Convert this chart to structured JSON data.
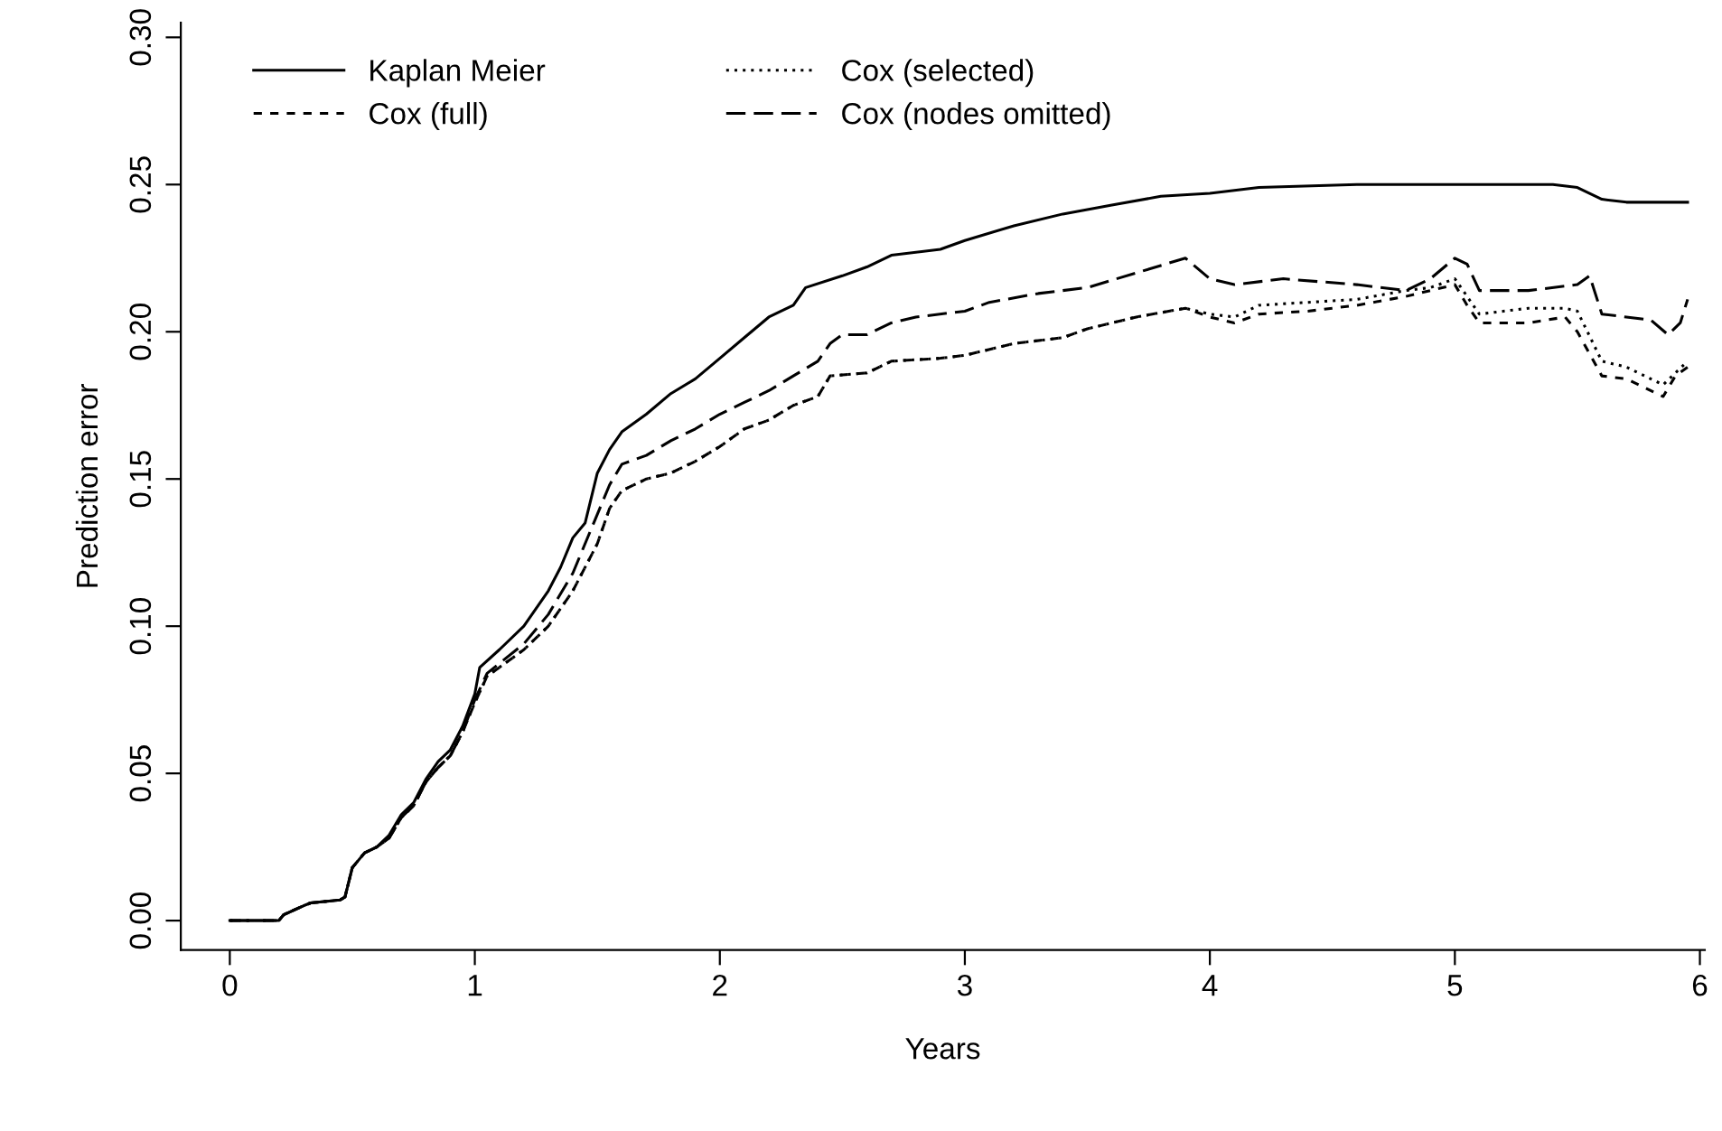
{
  "chart_data": {
    "type": "line",
    "xlabel": "Years",
    "ylabel": "Prediction error",
    "xlim": [
      -0.2,
      6.02
    ],
    "ylim": [
      -0.01,
      0.305
    ],
    "xticks": [
      0,
      1,
      2,
      3,
      4,
      5,
      6
    ],
    "yticks": [
      {
        "value": 0,
        "label": "0.00"
      },
      {
        "value": 0.05,
        "label": "0.05"
      },
      {
        "value": 0.1,
        "label": "0.10"
      },
      {
        "value": 0.15,
        "label": "0.15"
      },
      {
        "value": 0.2,
        "label": "0.20"
      },
      {
        "value": 0.25,
        "label": "0.25"
      },
      {
        "value": 0.3,
        "label": "0.30"
      }
    ],
    "grid": false,
    "legend": "top left",
    "marker": "none",
    "series": [
      {
        "name": "Kaplan Meier",
        "color": "#000000",
        "line_style": "solid",
        "x": [
          0,
          0.2,
          0.22,
          0.3,
          0.33,
          0.45,
          0.47,
          0.5,
          0.55,
          0.6,
          0.65,
          0.7,
          0.75,
          0.8,
          0.85,
          0.9,
          0.95,
          1.0,
          1.02,
          1.1,
          1.2,
          1.3,
          1.35,
          1.4,
          1.45,
          1.5,
          1.55,
          1.6,
          1.7,
          1.8,
          1.9,
          2.0,
          2.1,
          2.2,
          2.3,
          2.35,
          2.5,
          2.6,
          2.7,
          2.9,
          3.0,
          3.2,
          3.4,
          3.6,
          3.8,
          4.0,
          4.2,
          4.6,
          5.0,
          5.4,
          5.5,
          5.6,
          5.7,
          5.95
        ],
        "values": [
          0,
          0,
          0.002,
          0.005,
          0.006,
          0.007,
          0.008,
          0.018,
          0.023,
          0.025,
          0.029,
          0.036,
          0.04,
          0.048,
          0.054,
          0.058,
          0.066,
          0.077,
          0.086,
          0.092,
          0.1,
          0.112,
          0.12,
          0.13,
          0.135,
          0.152,
          0.16,
          0.166,
          0.172,
          0.179,
          0.184,
          0.191,
          0.198,
          0.205,
          0.209,
          0.215,
          0.219,
          0.222,
          0.226,
          0.228,
          0.231,
          0.236,
          0.24,
          0.243,
          0.246,
          0.247,
          0.249,
          0.25,
          0.25,
          0.25,
          0.249,
          0.245,
          0.244,
          0.244
        ]
      },
      {
        "name": "Cox (full)",
        "color": "#000000",
        "line_style": "dashed",
        "x": [
          0,
          0.2,
          0.22,
          0.3,
          0.33,
          0.45,
          0.47,
          0.5,
          0.55,
          0.6,
          0.65,
          0.7,
          0.75,
          0.8,
          0.85,
          0.9,
          0.95,
          1.0,
          1.05,
          1.2,
          1.3,
          1.4,
          1.5,
          1.55,
          1.6,
          1.7,
          1.8,
          1.9,
          2.0,
          2.1,
          2.2,
          2.3,
          2.4,
          2.45,
          2.6,
          2.7,
          2.9,
          3.0,
          3.2,
          3.4,
          3.5,
          3.7,
          3.9,
          4.0,
          4.1,
          4.2,
          4.4,
          4.6,
          4.8,
          4.9,
          5.0,
          5.05,
          5.1,
          5.3,
          5.45,
          5.5,
          5.6,
          5.7,
          5.85,
          5.9,
          5.95
        ],
        "values": [
          0,
          0,
          0.002,
          0.005,
          0.006,
          0.007,
          0.008,
          0.018,
          0.023,
          0.025,
          0.028,
          0.035,
          0.039,
          0.047,
          0.052,
          0.056,
          0.064,
          0.074,
          0.083,
          0.092,
          0.1,
          0.112,
          0.128,
          0.14,
          0.146,
          0.15,
          0.152,
          0.156,
          0.161,
          0.167,
          0.17,
          0.175,
          0.178,
          0.185,
          0.186,
          0.19,
          0.191,
          0.192,
          0.196,
          0.198,
          0.201,
          0.205,
          0.208,
          0.205,
          0.203,
          0.206,
          0.207,
          0.209,
          0.212,
          0.214,
          0.216,
          0.209,
          0.203,
          0.203,
          0.205,
          0.2,
          0.185,
          0.184,
          0.178,
          0.185,
          0.188
        ]
      },
      {
        "name": "Cox (selected)",
        "color": "#000000",
        "line_style": "dotted",
        "x": [
          0,
          0.2,
          0.22,
          0.3,
          0.33,
          0.45,
          0.47,
          0.5,
          0.55,
          0.6,
          0.65,
          0.7,
          0.75,
          0.8,
          0.85,
          0.9,
          0.95,
          1.0,
          1.05,
          1.2,
          1.3,
          1.4,
          1.5,
          1.55,
          1.6,
          1.7,
          1.8,
          1.9,
          2.0,
          2.1,
          2.2,
          2.3,
          2.4,
          2.45,
          2.6,
          2.7,
          2.9,
          3.0,
          3.2,
          3.4,
          3.5,
          3.7,
          3.9,
          4.0,
          4.1,
          4.2,
          4.4,
          4.6,
          4.8,
          4.9,
          5.0,
          5.05,
          5.1,
          5.3,
          5.45,
          5.5,
          5.6,
          5.7,
          5.85,
          5.9,
          5.95
        ],
        "values": [
          0,
          0,
          0.002,
          0.005,
          0.006,
          0.007,
          0.008,
          0.018,
          0.023,
          0.025,
          0.028,
          0.035,
          0.039,
          0.047,
          0.052,
          0.056,
          0.064,
          0.074,
          0.083,
          0.092,
          0.1,
          0.112,
          0.128,
          0.14,
          0.146,
          0.15,
          0.152,
          0.156,
          0.161,
          0.167,
          0.17,
          0.175,
          0.178,
          0.185,
          0.186,
          0.19,
          0.191,
          0.192,
          0.196,
          0.198,
          0.201,
          0.205,
          0.208,
          0.206,
          0.205,
          0.209,
          0.21,
          0.211,
          0.214,
          0.215,
          0.218,
          0.212,
          0.206,
          0.208,
          0.208,
          0.207,
          0.19,
          0.188,
          0.182,
          0.186,
          0.19
        ]
      },
      {
        "name": "Cox (nodes omitted)",
        "color": "#000000",
        "line_style": "longdash",
        "x": [
          0,
          0.2,
          0.22,
          0.3,
          0.33,
          0.45,
          0.47,
          0.5,
          0.55,
          0.6,
          0.65,
          0.7,
          0.75,
          0.8,
          0.85,
          0.9,
          0.95,
          1.0,
          1.05,
          1.2,
          1.3,
          1.4,
          1.5,
          1.55,
          1.6,
          1.7,
          1.8,
          1.9,
          2.0,
          2.1,
          2.2,
          2.3,
          2.4,
          2.45,
          2.5,
          2.6,
          2.7,
          2.8,
          3.0,
          3.1,
          3.3,
          3.5,
          3.7,
          3.9,
          4.0,
          4.1,
          4.3,
          4.6,
          4.8,
          4.9,
          5.0,
          5.05,
          5.1,
          5.3,
          5.5,
          5.55,
          5.6,
          5.7,
          5.8,
          5.87,
          5.92,
          5.95
        ],
        "values": [
          0,
          0,
          0.002,
          0.005,
          0.006,
          0.007,
          0.008,
          0.018,
          0.023,
          0.025,
          0.028,
          0.035,
          0.039,
          0.047,
          0.052,
          0.056,
          0.064,
          0.075,
          0.084,
          0.094,
          0.104,
          0.118,
          0.138,
          0.148,
          0.155,
          0.158,
          0.163,
          0.167,
          0.172,
          0.176,
          0.18,
          0.185,
          0.19,
          0.196,
          0.199,
          0.199,
          0.203,
          0.205,
          0.207,
          0.21,
          0.213,
          0.215,
          0.22,
          0.225,
          0.218,
          0.216,
          0.218,
          0.216,
          0.214,
          0.218,
          0.225,
          0.223,
          0.214,
          0.214,
          0.216,
          0.219,
          0.206,
          0.205,
          0.204,
          0.199,
          0.203,
          0.211
        ]
      }
    ]
  }
}
